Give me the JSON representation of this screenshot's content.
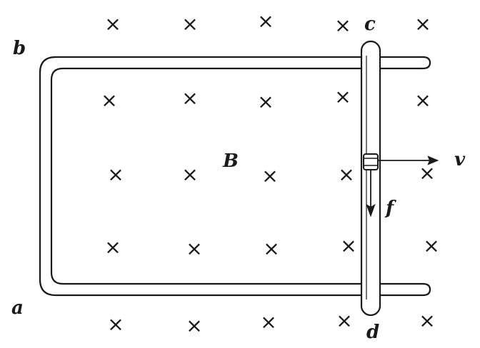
{
  "labels": {
    "a": "a",
    "b": "b",
    "c": "c",
    "d": "d",
    "B": "B",
    "v": "v",
    "f": "f"
  },
  "field_symbol": "×",
  "colors": {
    "ink": "#1a1a1a",
    "background": "#ffffff"
  }
}
